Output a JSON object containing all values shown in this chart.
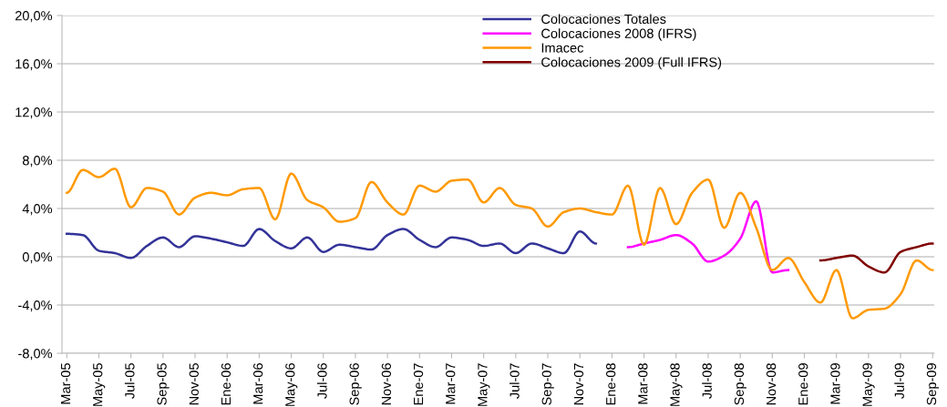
{
  "chart_data": {
    "type": "line",
    "categories": [
      "Mar-05",
      null,
      "May-05",
      null,
      "Jul-05",
      null,
      "Sep-05",
      null,
      "Nov-05",
      null,
      "Ene-06",
      null,
      "Mar-06",
      null,
      "May-06",
      null,
      "Jul-06",
      null,
      "Sep-06",
      null,
      "Nov-06",
      null,
      "Ene-07",
      null,
      "Mar-07",
      null,
      "May-07",
      null,
      "Jul-07",
      null,
      "Sep-07",
      null,
      "Nov-07",
      null,
      "Ene-08",
      null,
      "Mar-08",
      null,
      "May-08",
      null,
      "Jul-08",
      null,
      "Sep-08",
      null,
      "Nov-08",
      null,
      "Ene-09",
      null,
      "Mar-09",
      null,
      "May-09",
      null,
      "Jul-09",
      null,
      "Sep-09"
    ],
    "series": [
      {
        "name": "Colocaciones Totales",
        "color": "#333399",
        "values": [
          1.9,
          1.8,
          0.5,
          0.3,
          -0.1,
          0.9,
          1.6,
          0.8,
          1.7,
          1.5,
          1.2,
          0.9,
          2.3,
          1.3,
          0.7,
          1.6,
          0.4,
          1.0,
          0.8,
          0.6,
          1.8,
          2.3,
          1.4,
          0.8,
          1.6,
          1.4,
          0.9,
          1.1,
          0.3,
          1.1,
          0.7,
          0.3,
          2.1,
          1.1,
          null,
          null,
          null,
          null,
          null,
          null,
          null,
          null,
          null,
          null,
          null,
          null,
          null,
          null,
          null,
          null,
          null,
          null,
          null,
          null,
          null
        ]
      },
      {
        "name": "Colocaciones 2008 (IFRS)",
        "color": "#ff00ff",
        "values": [
          null,
          null,
          null,
          null,
          null,
          null,
          null,
          null,
          null,
          null,
          null,
          null,
          null,
          null,
          null,
          null,
          null,
          null,
          null,
          null,
          null,
          null,
          null,
          null,
          null,
          null,
          null,
          null,
          null,
          null,
          null,
          null,
          null,
          null,
          null,
          0.8,
          1.1,
          1.4,
          1.8,
          1.1,
          -0.4,
          0.1,
          1.5,
          4.6,
          -1.3,
          -1.1,
          null,
          null,
          null,
          null,
          null,
          null,
          null,
          null,
          null
        ]
      },
      {
        "name": "Imacec",
        "color": "#ff9900",
        "values": [
          5.3,
          7.2,
          6.6,
          7.3,
          4.1,
          5.7,
          5.4,
          3.5,
          4.9,
          5.3,
          5.1,
          5.6,
          5.7,
          3.1,
          6.9,
          4.7,
          4.1,
          2.9,
          3.2,
          6.2,
          4.5,
          3.5,
          5.9,
          5.4,
          6.3,
          6.4,
          4.5,
          5.7,
          4.3,
          4.0,
          2.5,
          3.7,
          4.0,
          3.7,
          3.5,
          5.9,
          1.0,
          5.7,
          2.7,
          5.3,
          6.4,
          2.4,
          5.3,
          2.4,
          -1.1,
          -0.1,
          -2.1,
          -3.8,
          -1.1,
          -5.1,
          -4.4,
          -4.3,
          -3.1,
          -0.3,
          -1.1
        ]
      },
      {
        "name": "Colocaciones 2009 (Full IFRS)",
        "color": "#800000",
        "values": [
          null,
          null,
          null,
          null,
          null,
          null,
          null,
          null,
          null,
          null,
          null,
          null,
          null,
          null,
          null,
          null,
          null,
          null,
          null,
          null,
          null,
          null,
          null,
          null,
          null,
          null,
          null,
          null,
          null,
          null,
          null,
          null,
          null,
          null,
          null,
          null,
          null,
          null,
          null,
          null,
          null,
          null,
          null,
          null,
          null,
          null,
          null,
          -0.3,
          -0.1,
          0.1,
          -0.8,
          -1.3,
          0.4,
          0.8,
          1.1
        ]
      }
    ],
    "ylim": [
      -8,
      20
    ],
    "yticks": [
      {
        "value": -8,
        "label": "-8,0%"
      },
      {
        "value": -4,
        "label": "-4,0%"
      },
      {
        "value": 0,
        "label": "0,0%"
      },
      {
        "value": 4,
        "label": "4,0%"
      },
      {
        "value": 8,
        "label": "8,0%"
      },
      {
        "value": 12,
        "label": "12,0%"
      },
      {
        "value": 16,
        "label": "16,0%"
      },
      {
        "value": 20,
        "label": "20,0%"
      }
    ],
    "grid": "y",
    "legend": "top",
    "marker": "none",
    "line_style": "solid"
  }
}
